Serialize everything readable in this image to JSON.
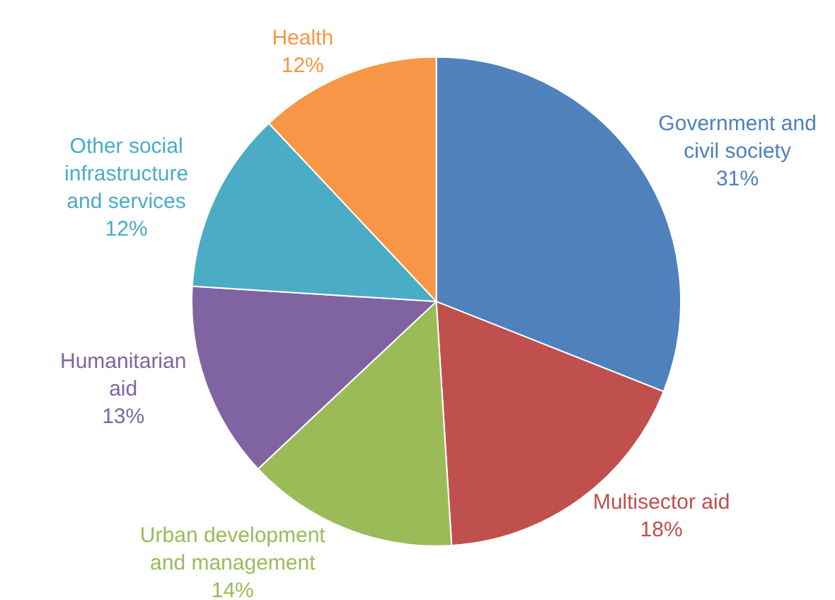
{
  "chart_data": {
    "type": "pie",
    "categories": [
      "Government and\ncivil society",
      "Multisector aid",
      "Urban development\nand management",
      "Humanitarian\naid",
      "Other social\ninfrastructure\nand services",
      "Health"
    ],
    "values": [
      31,
      18,
      14,
      13,
      12,
      12
    ],
    "value_labels": [
      "31%",
      "18%",
      "14%",
      "13%",
      "12%",
      "12%"
    ],
    "colors": [
      "#4f81bd",
      "#c0504d",
      "#9bbb59",
      "#8064a2",
      "#4bacc6",
      "#f79646"
    ],
    "legend": false
  }
}
